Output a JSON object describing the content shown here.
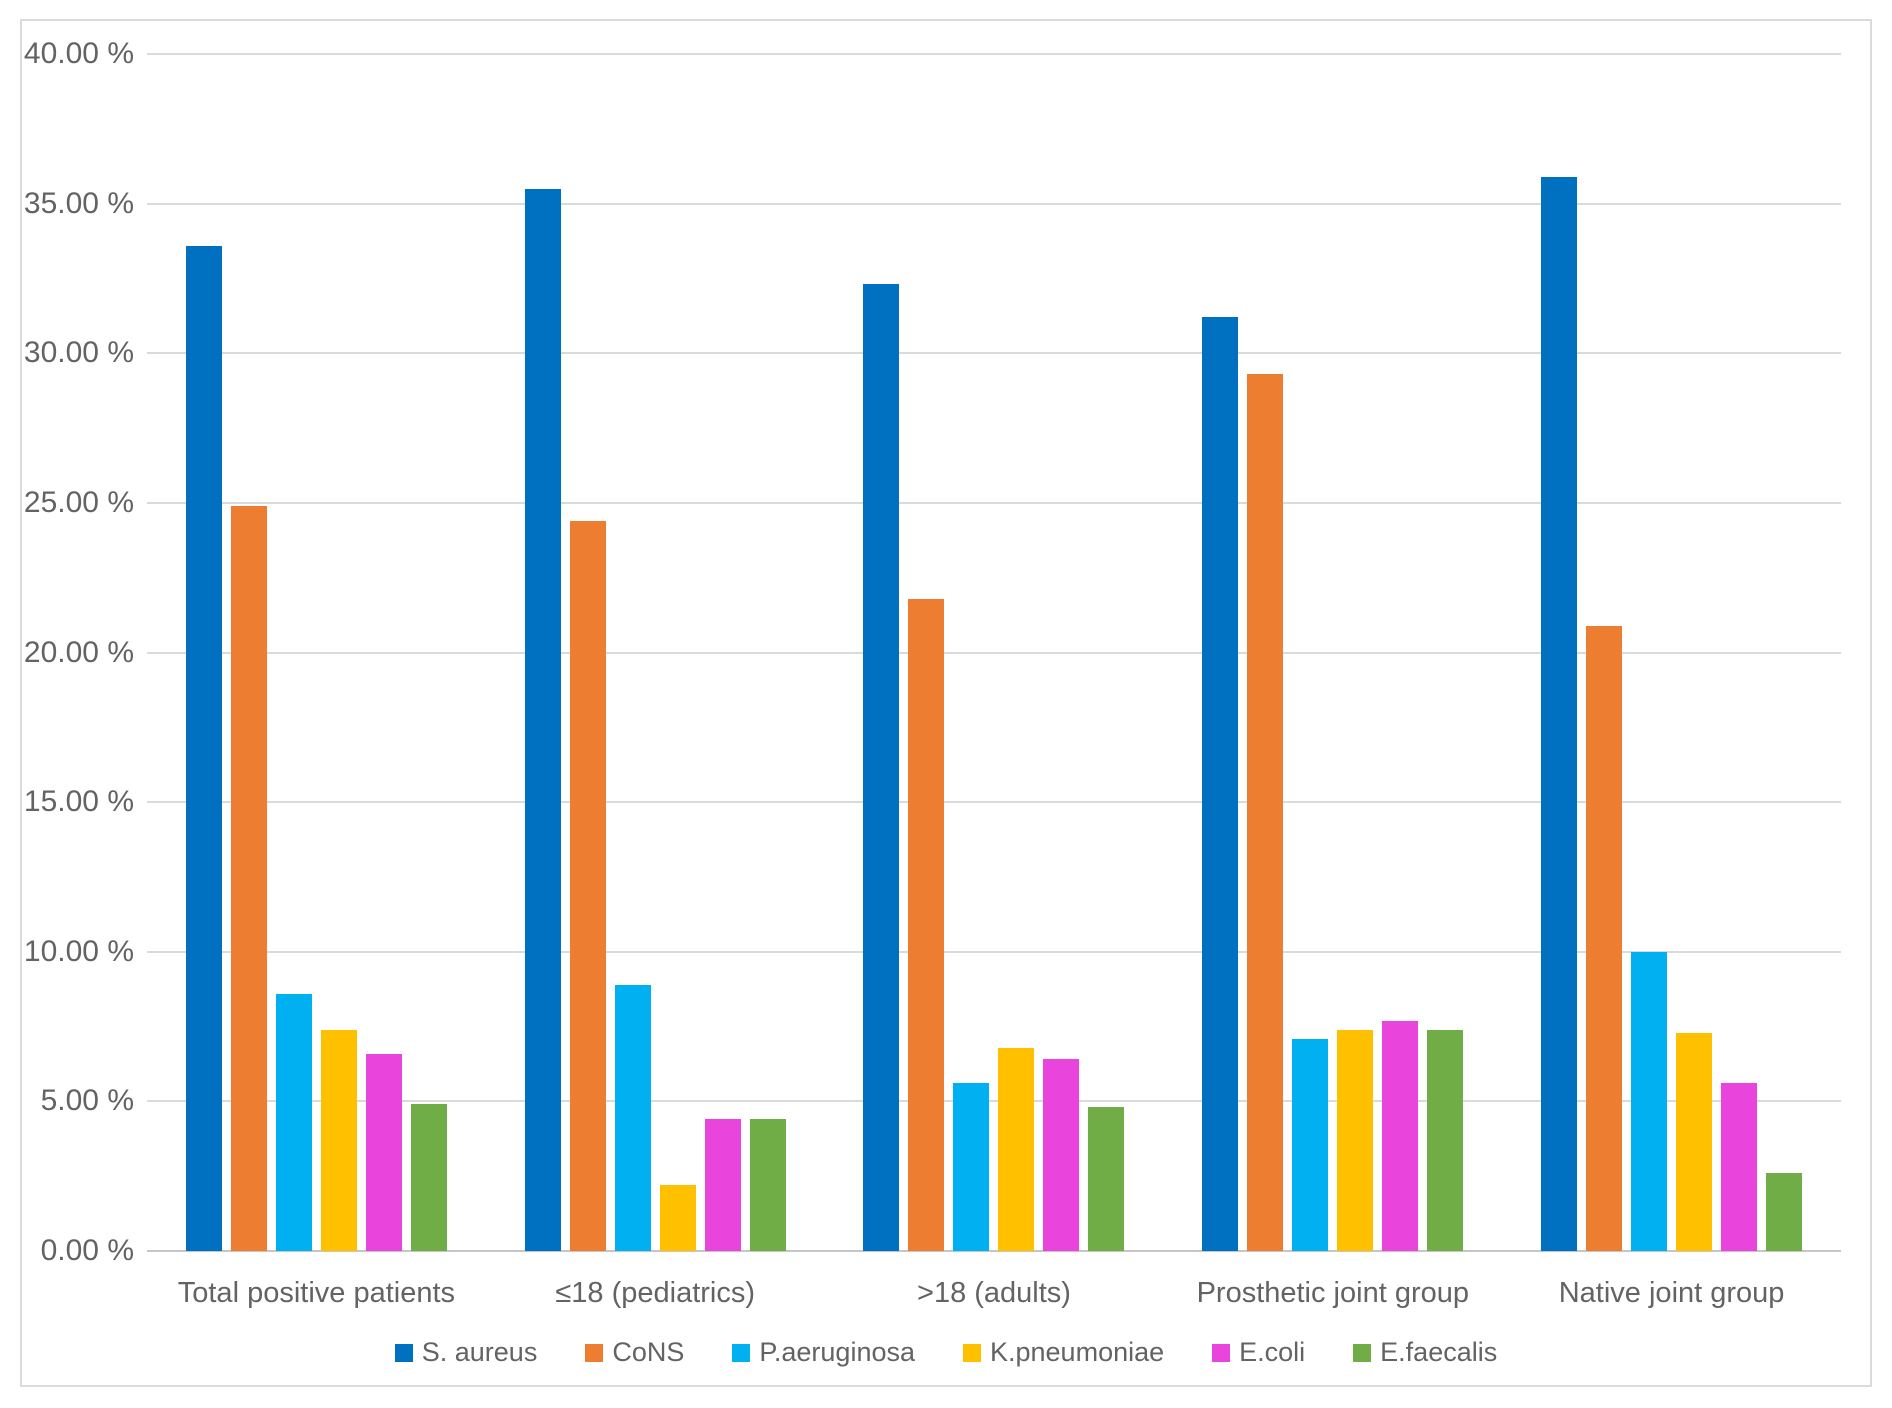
{
  "chart_data": {
    "type": "bar",
    "title": "",
    "categories": [
      "Total positive patients",
      "≤18 (pediatrics)",
      ">18 (adults)",
      "Prosthetic joint group",
      "Native joint group"
    ],
    "series": [
      {
        "name": "S. aureus",
        "color": "#0070C0",
        "values": [
          33.6,
          35.5,
          32.3,
          31.2,
          35.9
        ]
      },
      {
        "name": "CoNS",
        "color": "#ED7D31",
        "values": [
          24.9,
          24.4,
          21.8,
          29.3,
          20.9
        ]
      },
      {
        "name": "P.aeruginosa",
        "color": "#00B0F0",
        "values": [
          8.6,
          8.9,
          5.6,
          7.1,
          10.0
        ]
      },
      {
        "name": "K.pneumoniae",
        "color": "#FFC000",
        "values": [
          7.4,
          2.2,
          6.8,
          7.4,
          7.3
        ]
      },
      {
        "name": "E.coli",
        "color": "#E944DC",
        "values": [
          6.6,
          4.4,
          6.4,
          7.7,
          5.6
        ]
      },
      {
        "name": "E.faecalis",
        "color": "#70AD47",
        "values": [
          4.9,
          4.4,
          4.8,
          7.4,
          2.6
        ]
      }
    ],
    "y_axis": {
      "min": 0,
      "max": 40,
      "step": 5,
      "tick_labels": [
        "0.00 %",
        "5.00 %",
        "10.00 %",
        "15.00 %",
        "20.00 %",
        "25.00 %",
        "30.00 %",
        "35.00 %",
        "40.00 %"
      ]
    },
    "grid": true,
    "legend_position": "bottom"
  },
  "styles": {
    "background": "#FFFFFF",
    "border_color": "#DBDBDB",
    "gridline_color": "#DADADA",
    "axis_line_color": "#C6C6C6",
    "text_color": "#636363"
  }
}
